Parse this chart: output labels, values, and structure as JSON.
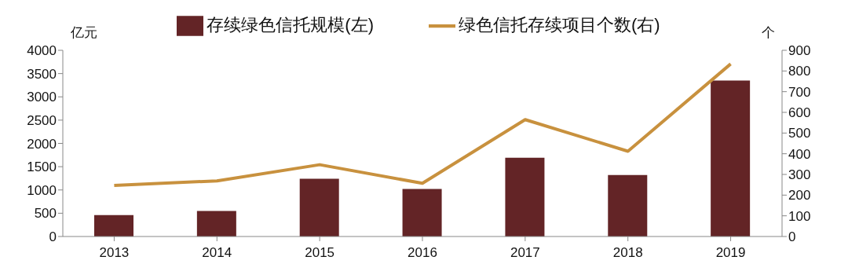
{
  "chart_data": {
    "type": "bar",
    "ylabel": "亿元",
    "y2label": "个",
    "categories": [
      "2013",
      "2014",
      "2015",
      "2016",
      "2017",
      "2018",
      "2019"
    ],
    "series": [
      {
        "name": "存续绿色信托规模(左)",
        "color": "#632426",
        "values": [
          460,
          550,
          1240,
          1020,
          1690,
          1320,
          3350
        ]
      },
      {
        "name": "绿色信托存续项目个数(右)",
        "type": "line",
        "axis": "y2",
        "color": "#c8913e",
        "values": [
          247,
          269,
          347,
          257,
          565,
          412,
          834
        ]
      }
    ],
    "ylim": [
      0,
      4000
    ],
    "yticks": [
      0,
      500,
      1000,
      1500,
      2000,
      2500,
      3000,
      3500,
      4000
    ],
    "y2lim": [
      0,
      900
    ],
    "y2ticks": [
      0,
      100,
      200,
      300,
      400,
      500,
      600,
      700,
      800,
      900
    ],
    "grid": false,
    "legend": "top",
    "marker": "none",
    "line_style": "solid"
  }
}
